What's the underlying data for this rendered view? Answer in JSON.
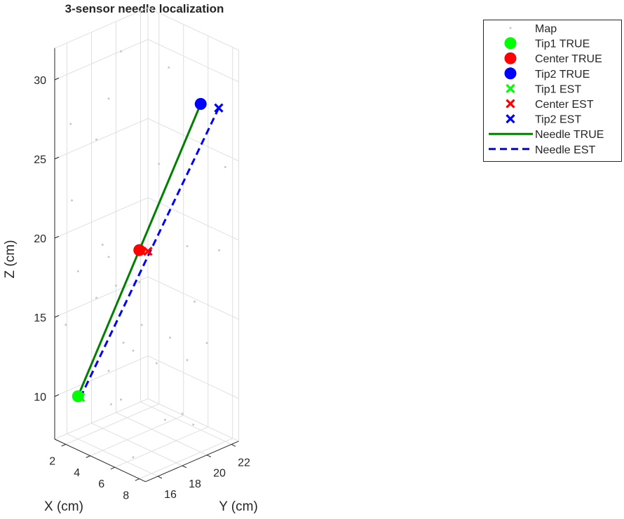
{
  "chart_data": {
    "type": "scatter3d",
    "title": "3-sensor needle localization",
    "xlabel": "X (cm)",
    "ylabel": "Y (cm)",
    "zlabel": "Z (cm)",
    "xlim": [
      1.1,
      8.5
    ],
    "ylim": [
      15,
      22.6
    ],
    "zlim": [
      7.3,
      32
    ],
    "xticks": [
      2,
      4,
      6,
      8
    ],
    "yticks": [
      16,
      18,
      20,
      22
    ],
    "zticks": [
      10,
      15,
      20,
      25,
      30
    ],
    "grid": true,
    "legend_position": "northeast",
    "series": [
      {
        "name": "Map",
        "color": "#c8c8c8",
        "marker": "dot",
        "x": [
          3.7,
          5.6,
          1.7,
          3.2,
          2.7,
          5.2,
          7.8,
          1.8,
          3.0,
          6.3,
          7.5,
          3.2,
          2.0,
          3.5,
          4.4,
          2.7,
          6.6,
          1.5,
          4.5,
          5.6,
          3.8,
          4.2,
          7.1,
          6.3,
          5.1,
          3.2,
          3.7,
          3.3,
          6.1,
          5.4,
          6.5,
          6.1
        ],
        "y": [
          17.8,
          19.8,
          15.7,
          17.3,
          16.8,
          19.4,
          22.2,
          15.7,
          17.0,
          20.6,
          22.0,
          17.3,
          16.0,
          17.6,
          18.6,
          16.8,
          20.9,
          15.5,
          18.7,
          19.9,
          17.9,
          18.3,
          21.4,
          20.6,
          19.3,
          17.3,
          17.8,
          17.4,
          20.4,
          19.7,
          20.9,
          16.4
        ],
        "z": [
          31.8,
          30.8,
          27.2,
          28.8,
          26.2,
          24.7,
          24.5,
          22.4,
          19.6,
          19.5,
          19.2,
          18.8,
          17.9,
          17.0,
          17.2,
          16.2,
          16.0,
          14.5,
          14.5,
          13.7,
          13.4,
          12.9,
          13.4,
          12.3,
          12.1,
          11.6,
          9.8,
          9.5,
          8.9,
          8.5,
          8.2,
          7.5
        ]
      },
      {
        "name": "Tip1 TRUE",
        "color": "#00ff00",
        "marker": "circle",
        "x": [
          2.0
        ],
        "y": [
          16.0
        ],
        "z": [
          10.0
        ]
      },
      {
        "name": "Center TRUE",
        "color": "#ff0000",
        "marker": "circle",
        "x": [
          4.5
        ],
        "y": [
          18.5
        ],
        "z": [
          19.3
        ]
      },
      {
        "name": "Tip2 TRUE",
        "color": "#0000ff",
        "marker": "circle",
        "x": [
          7.0
        ],
        "y": [
          21.0
        ],
        "z": [
          28.6
        ]
      },
      {
        "name": "Tip1 EST",
        "color": "#00ff00",
        "marker": "x",
        "x": [
          2.2
        ],
        "y": [
          16.0
        ],
        "z": [
          10.0
        ]
      },
      {
        "name": "Center EST",
        "color": "#ff0000",
        "marker": "x",
        "x": [
          4.8
        ],
        "y": [
          18.9
        ],
        "z": [
          19.2
        ]
      },
      {
        "name": "Tip2 EST",
        "color": "#0000ff",
        "marker": "x",
        "x": [
          7.5
        ],
        "y": [
          21.97
        ],
        "z": [
          28.2
        ]
      },
      {
        "name": "Needle TRUE",
        "color": "#008000",
        "line_style": "solid",
        "x": [
          2.0,
          7.0
        ],
        "y": [
          16.0,
          21.0
        ],
        "z": [
          10.0,
          28.6
        ]
      },
      {
        "name": "Needle EST",
        "color": "#0000ff",
        "line_style": "dashed",
        "x": [
          2.2,
          7.5
        ],
        "y": [
          16.0,
          21.97
        ],
        "z": [
          10.0,
          28.2
        ]
      }
    ]
  }
}
